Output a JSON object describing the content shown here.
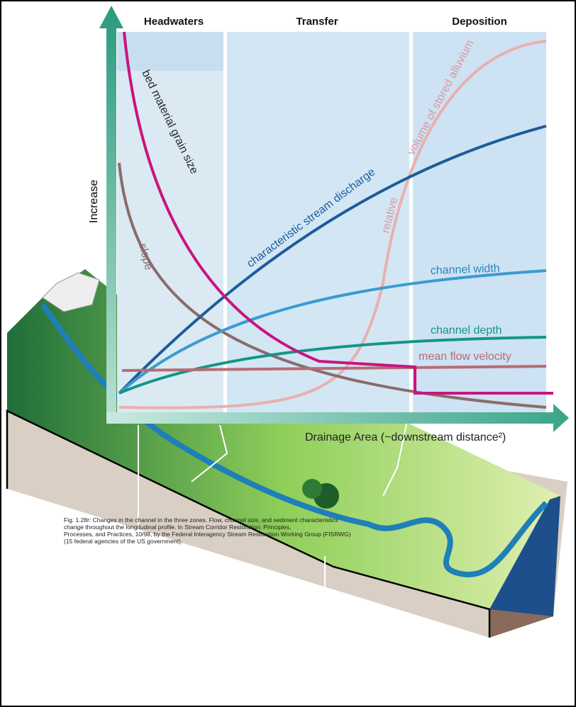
{
  "zones": [
    "Headwaters",
    "Transfer",
    "Deposition"
  ],
  "y_axis_label": "Increase",
  "x_axis_label": "Drainage Area (~downstream distance²)",
  "curve_labels": {
    "bed_material": "bed material grain size",
    "slope": "slope",
    "discharge": "characteristic stream discharge",
    "relative": "relative",
    "alluvium": "volume of stored alluvium",
    "width": "channel width",
    "depth": "channel depth",
    "velocity": "mean flow velocity"
  },
  "caption": [
    "Fig. 1.28r:  Changes in the channel in the three zones.  Flow, channel size, and sediment characteristics",
    "change throughout the longitudinal profile.  In Stream Corridor Restoration: Principles,",
    "Processes, and Practices, 10/98, by the Federal Interagency Stream Restoration Working Group (FISRWG)",
    "(15 federal agencies of the US government)."
  ]
}
